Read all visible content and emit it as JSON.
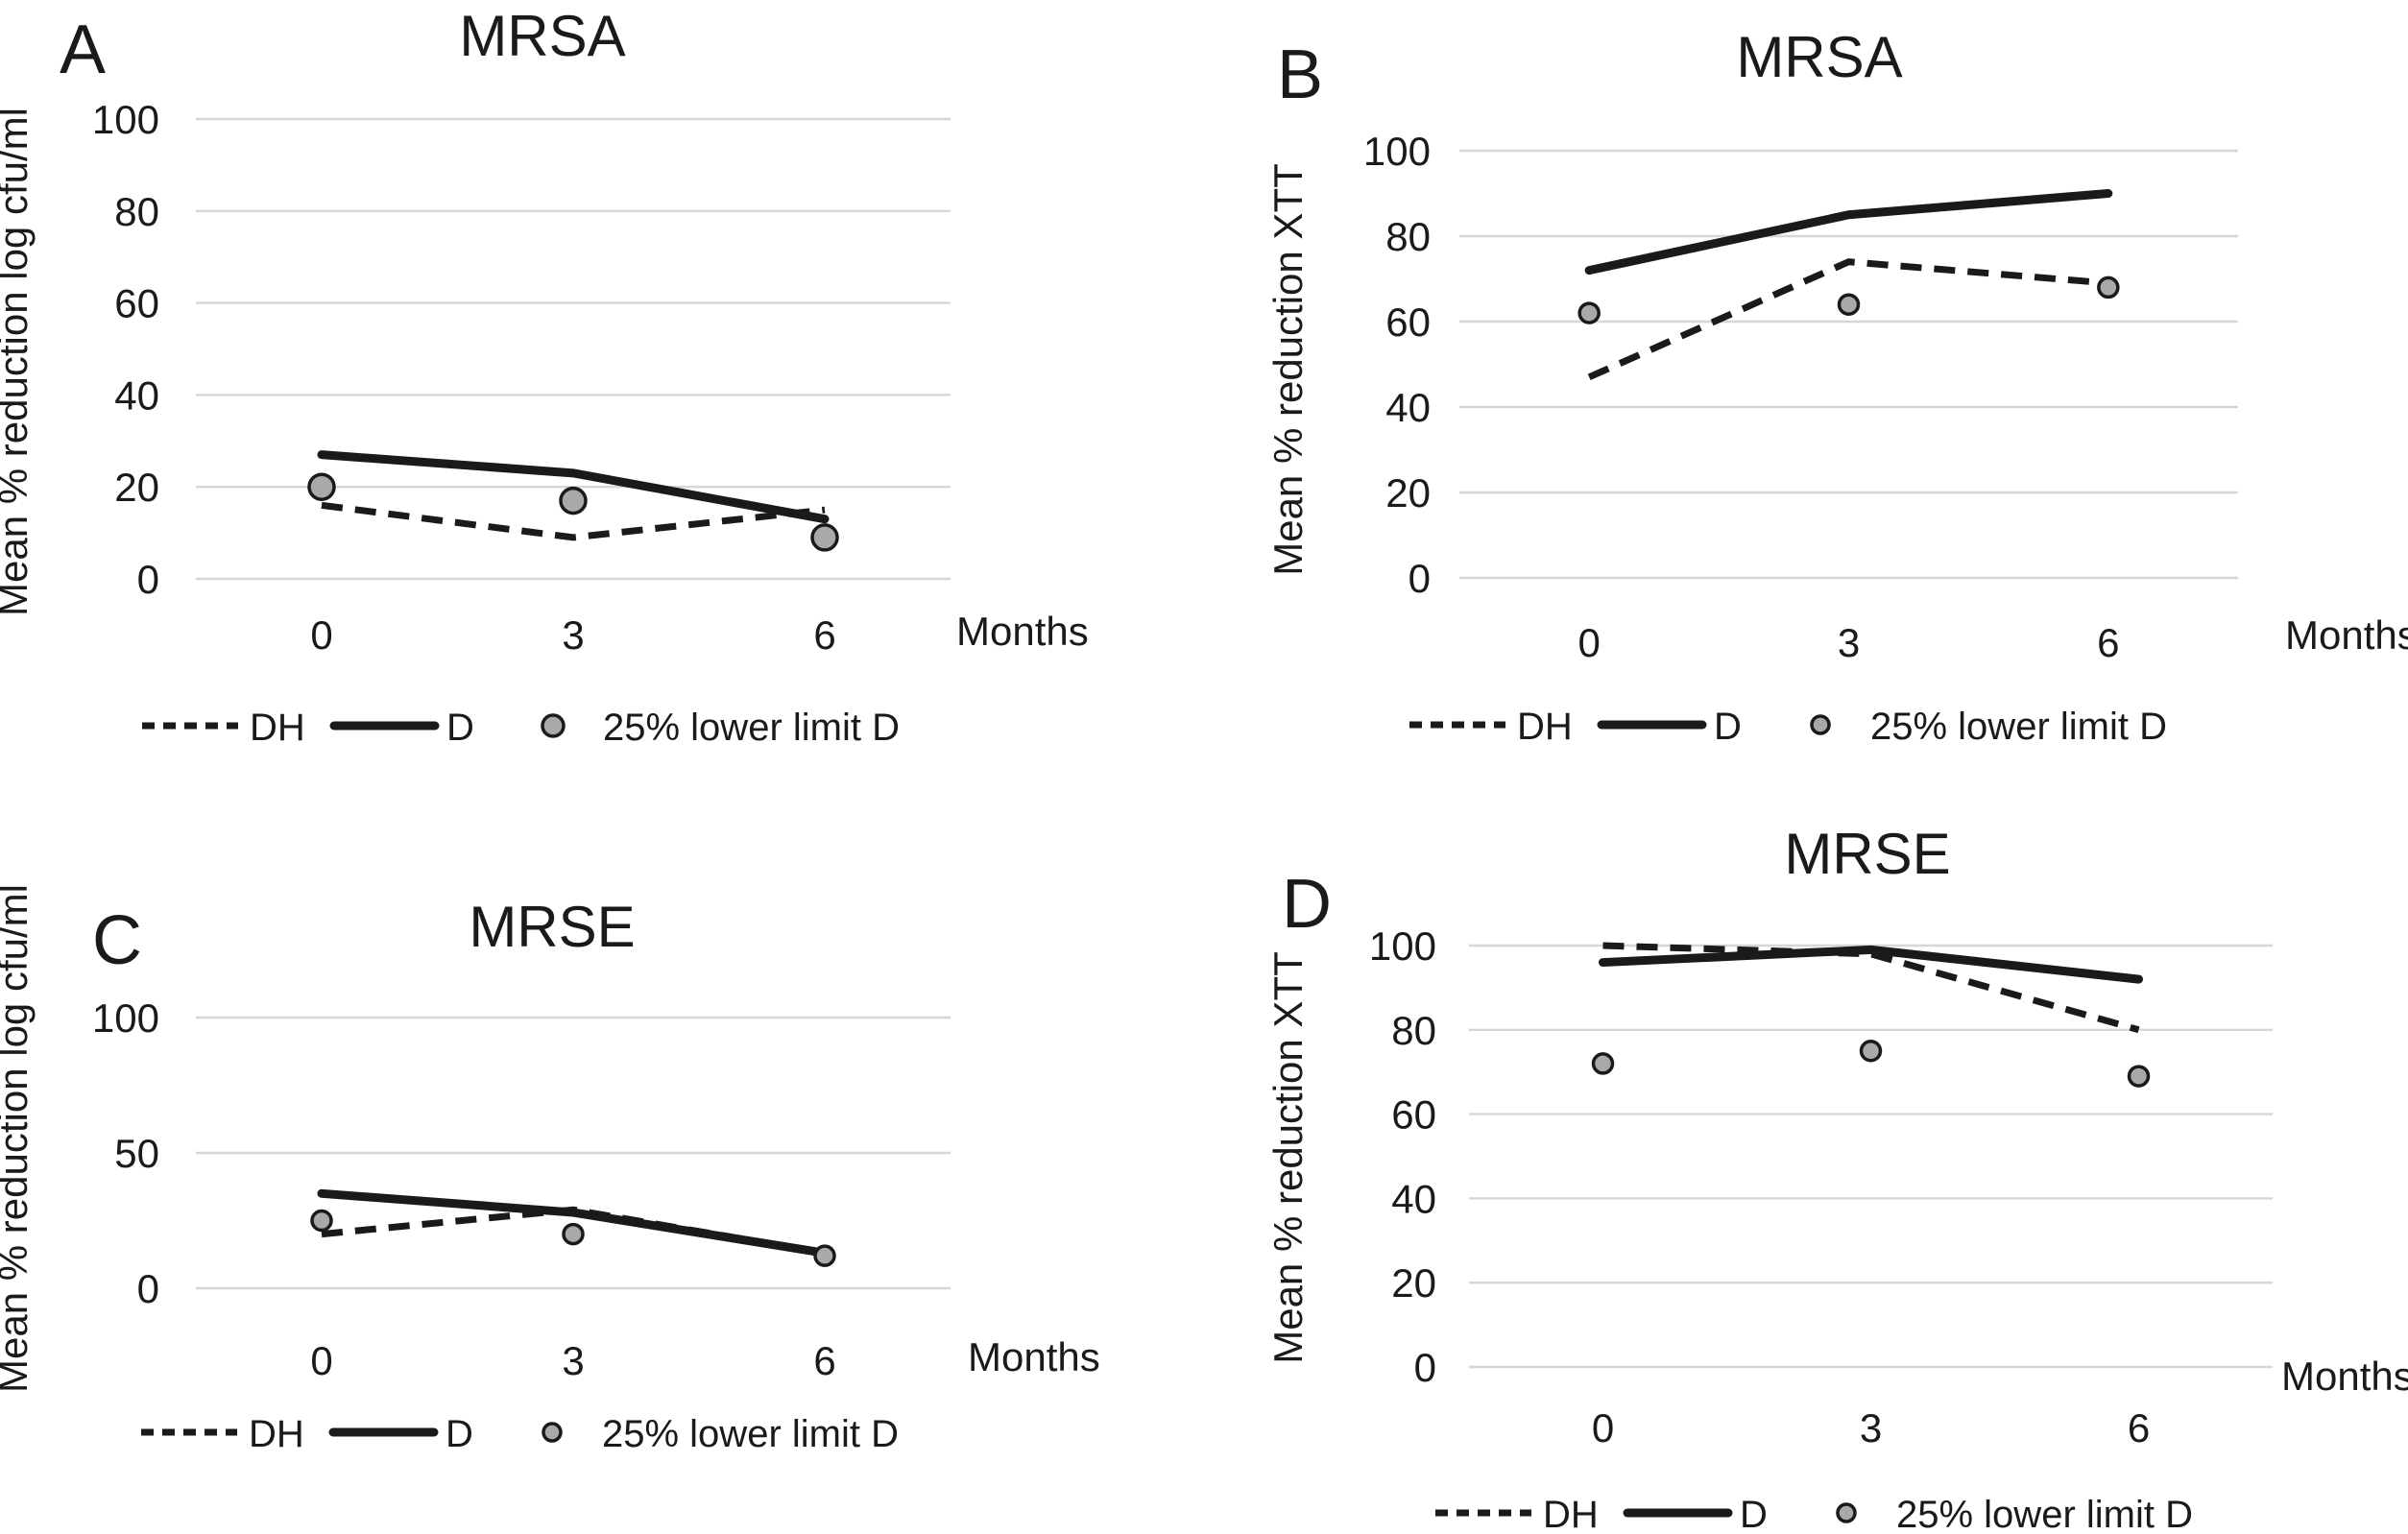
{
  "figure": {
    "background": "#ffffff",
    "colors": {
      "line": "#1a1a1a",
      "grid": "#d6d6d6",
      "dot_fill": "#a9a9a9",
      "dot_stroke": "#1a1a1a",
      "text": "#1a1a1a"
    }
  },
  "chart_data": [
    {
      "panel": "A",
      "panel_label": "A",
      "type": "line",
      "title": "MRSA",
      "ylabel": "Mean % reduction log cfu/ml",
      "xlabel": "Months",
      "categories": [
        "0",
        "3",
        "6"
      ],
      "ylim": [
        0,
        100
      ],
      "yticks": [
        0,
        20,
        40,
        60,
        80,
        100
      ],
      "grid": true,
      "legend_position": "bottom",
      "series": [
        {
          "name": "DH",
          "style": "dashed",
          "values": [
            16,
            9,
            15
          ]
        },
        {
          "name": "D",
          "style": "solid",
          "values": [
            27,
            23,
            13
          ]
        },
        {
          "name": "25% lower limit D",
          "style": "points",
          "values": [
            20,
            17,
            9
          ]
        }
      ]
    },
    {
      "panel": "B",
      "panel_label": "B",
      "type": "line",
      "title": "MRSA",
      "ylabel": "Mean % reduction XTT",
      "xlabel": "Months",
      "categories": [
        "0",
        "3",
        "6"
      ],
      "ylim": [
        0,
        100
      ],
      "yticks": [
        0,
        20,
        40,
        60,
        80,
        100
      ],
      "grid": true,
      "legend_position": "bottom",
      "series": [
        {
          "name": "DH",
          "style": "dashed",
          "values": [
            47,
            74,
            69
          ]
        },
        {
          "name": "D",
          "style": "solid",
          "values": [
            72,
            85,
            90
          ]
        },
        {
          "name": "25% lower limit D",
          "style": "points",
          "values": [
            62,
            64,
            68
          ]
        }
      ]
    },
    {
      "panel": "C",
      "panel_label": "C",
      "type": "line",
      "title": "MRSE",
      "ylabel": "Mean % reduction log cfu/ml",
      "xlabel": "Months",
      "categories": [
        "0",
        "3",
        "6"
      ],
      "ylim": [
        0,
        100
      ],
      "yticks": [
        0,
        50,
        100
      ],
      "grid": true,
      "legend_position": "bottom",
      "series": [
        {
          "name": "DH",
          "style": "dashed",
          "values": [
            20,
            29,
            13
          ]
        },
        {
          "name": "D",
          "style": "solid",
          "values": [
            35,
            28,
            13
          ]
        },
        {
          "name": "25% lower limit D",
          "style": "points",
          "values": [
            25,
            20,
            12
          ]
        }
      ]
    },
    {
      "panel": "D",
      "panel_label": "D",
      "type": "line",
      "title": "MRSE",
      "ylabel": "Mean % reduction XTT",
      "xlabel": "Months",
      "categories": [
        "0",
        "3",
        "6"
      ],
      "ylim": [
        0,
        100
      ],
      "yticks": [
        0,
        20,
        40,
        60,
        80,
        100
      ],
      "grid": true,
      "legend_position": "bottom",
      "series": [
        {
          "name": "DH",
          "style": "dashed",
          "values": [
            100,
            98,
            80
          ]
        },
        {
          "name": "D",
          "style": "solid",
          "values": [
            96,
            99,
            92
          ]
        },
        {
          "name": "25% lower limit D",
          "style": "points",
          "values": [
            72,
            75,
            69
          ]
        }
      ]
    }
  ]
}
